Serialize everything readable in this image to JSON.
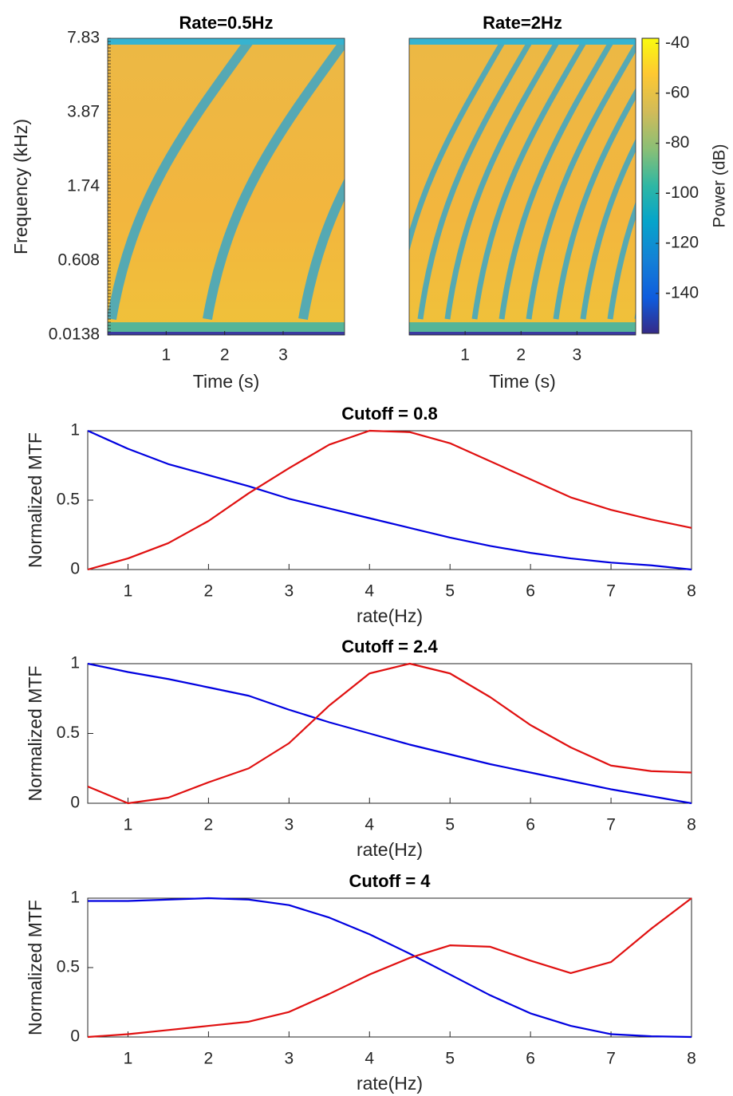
{
  "chart_data": [
    {
      "type": "spectrogram",
      "title": "Rate=0.5Hz",
      "xlabel": "Time (s)",
      "ylabel": "Frequency (kHz)",
      "xlim": [
        0,
        4.05
      ],
      "xticks": [
        1,
        2,
        3
      ],
      "ytick_labels": [
        "0.0138",
        "0.608",
        "1.74",
        "3.87",
        "7.83"
      ]
    },
    {
      "type": "spectrogram",
      "title": "Rate=2Hz",
      "xlabel": "Time (s)",
      "xlim": [
        0,
        4.05
      ],
      "xticks": [
        1,
        2,
        3
      ],
      "colorbar": {
        "clim": [
          -156,
          -38
        ],
        "ticks": [
          -140,
          -120,
          -100,
          -80,
          -60,
          -40
        ],
        "label": "Power (dB)"
      }
    },
    {
      "type": "line",
      "title": "Cutoff = 0.8",
      "xlabel": "rate(Hz)",
      "ylabel": "Normalized MTF",
      "x": [
        0.5,
        1,
        1.5,
        2,
        2.5,
        3,
        3.5,
        4,
        4.5,
        5,
        5.5,
        6,
        6.5,
        7,
        7.5,
        8
      ],
      "xlim": [
        0.5,
        8
      ],
      "xticks": [
        1,
        2,
        3,
        4,
        5,
        6,
        7,
        8
      ],
      "ylim": [
        0,
        1
      ],
      "yticks": [
        0,
        0.5,
        1
      ],
      "series": [
        {
          "color": "#0000e0",
          "values": [
            1,
            0.87,
            0.76,
            0.68,
            0.6,
            0.51,
            0.44,
            0.37,
            0.3,
            0.23,
            0.17,
            0.12,
            0.08,
            0.05,
            0.03,
            0
          ]
        },
        {
          "color": "#e01010",
          "values": [
            0,
            0.08,
            0.19,
            0.35,
            0.55,
            0.73,
            0.9,
            1,
            0.99,
            0.91,
            0.78,
            0.65,
            0.52,
            0.43,
            0.36,
            0.3
          ]
        }
      ]
    },
    {
      "type": "line",
      "title": "Cutoff = 2.4",
      "xlabel": "rate(Hz)",
      "ylabel": "Normalized MTF",
      "x": [
        0.5,
        1,
        1.5,
        2,
        2.5,
        3,
        3.5,
        4,
        4.5,
        5,
        5.5,
        6,
        6.5,
        7,
        7.5,
        8
      ],
      "xlim": [
        0.5,
        8
      ],
      "xticks": [
        1,
        2,
        3,
        4,
        5,
        6,
        7,
        8
      ],
      "ylim": [
        0,
        1
      ],
      "yticks": [
        0,
        0.5,
        1
      ],
      "series": [
        {
          "color": "#0000e0",
          "values": [
            1,
            0.94,
            0.89,
            0.83,
            0.77,
            0.67,
            0.58,
            0.5,
            0.42,
            0.35,
            0.28,
            0.22,
            0.16,
            0.1,
            0.05,
            0
          ]
        },
        {
          "color": "#e01010",
          "values": [
            0.12,
            0,
            0.04,
            0.15,
            0.25,
            0.43,
            0.7,
            0.93,
            1,
            0.93,
            0.76,
            0.56,
            0.4,
            0.27,
            0.23,
            0.22
          ]
        }
      ]
    },
    {
      "type": "line",
      "title": "Cutoff = 4",
      "xlabel": "rate(Hz)",
      "ylabel": "Normalized MTF",
      "x": [
        0.5,
        1,
        1.5,
        2,
        2.5,
        3,
        3.5,
        4,
        4.5,
        5,
        5.5,
        6,
        6.5,
        7,
        7.5,
        8
      ],
      "xlim": [
        0.5,
        8
      ],
      "xticks": [
        1,
        2,
        3,
        4,
        5,
        6,
        7,
        8
      ],
      "ylim": [
        0,
        1
      ],
      "yticks": [
        0,
        0.5,
        1
      ],
      "series": [
        {
          "color": "#0000e0",
          "values": [
            0.98,
            0.98,
            0.99,
            1,
            0.99,
            0.95,
            0.86,
            0.74,
            0.6,
            0.45,
            0.3,
            0.17,
            0.08,
            0.02,
            0.005,
            0
          ]
        },
        {
          "color": "#e01010",
          "values": [
            0,
            0.02,
            0.05,
            0.08,
            0.11,
            0.18,
            0.31,
            0.45,
            0.57,
            0.66,
            0.65,
            0.55,
            0.46,
            0.54,
            0.78,
            1
          ]
        }
      ]
    }
  ]
}
